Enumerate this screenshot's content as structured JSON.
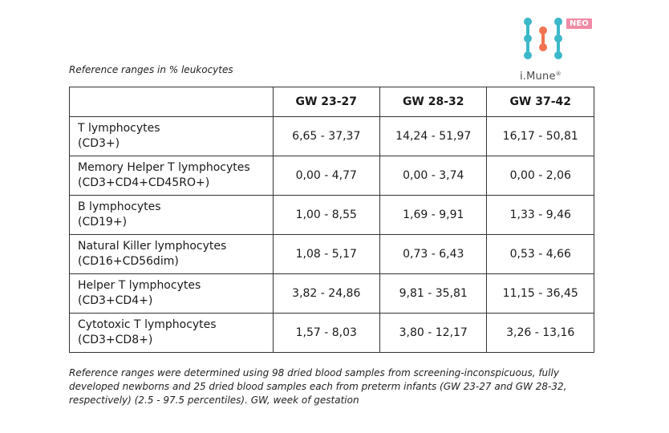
{
  "logo": {
    "brand": "i.Mune",
    "registered": "®",
    "badge": "NEO",
    "colors": {
      "teal": "#3bb8c9",
      "orange": "#f2734f",
      "pink": "#f08aa6"
    }
  },
  "caption": "Reference ranges in % leukocytes",
  "table": {
    "headers": [
      "",
      "GW 23-27",
      "GW 28-32",
      "GW 37-42"
    ],
    "rows": [
      {
        "name": "T lymphocytes",
        "markers": "(CD3+)",
        "values": [
          "6,65 - 37,37",
          "14,24 - 51,97",
          "16,17 - 50,81"
        ]
      },
      {
        "name": "Memory Helper T lymphocytes",
        "markers": "(CD3+CD4+CD45RO+)",
        "values": [
          "0,00 - 4,77",
          "0,00 - 3,74",
          "0,00 - 2,06"
        ]
      },
      {
        "name": "B lymphocytes",
        "markers": "(CD19+)",
        "values": [
          "1,00 - 8,55",
          "1,69 - 9,91",
          "1,33 - 9,46"
        ]
      },
      {
        "name": "Natural Killer lymphocytes",
        "markers": "(CD16+CD56dim)",
        "values": [
          "1,08 - 5,17",
          "0,73 - 6,43",
          "0,53 - 4,66"
        ]
      },
      {
        "name": "Helper T lymphocytes",
        "markers": "(CD3+CD4+)",
        "values": [
          "3,82 - 24,86",
          "9,81 - 35,81",
          "11,15 - 36,45"
        ]
      },
      {
        "name": "Cytotoxic T lymphocytes",
        "markers": "(CD3+CD8+)",
        "values": [
          "1,57 - 8,03",
          "3,80 - 12,17",
          "3,26 - 13,16"
        ]
      }
    ]
  },
  "footnote": "Reference ranges were determined  using 98 dried blood samples from screening-inconspicuous, fully developed newborns and 25 dried blood samples each from preterm infants (GW 23-27 and GW 28-32, respectively) (2.5 - 97.5 percentiles). GW, week of gestation"
}
